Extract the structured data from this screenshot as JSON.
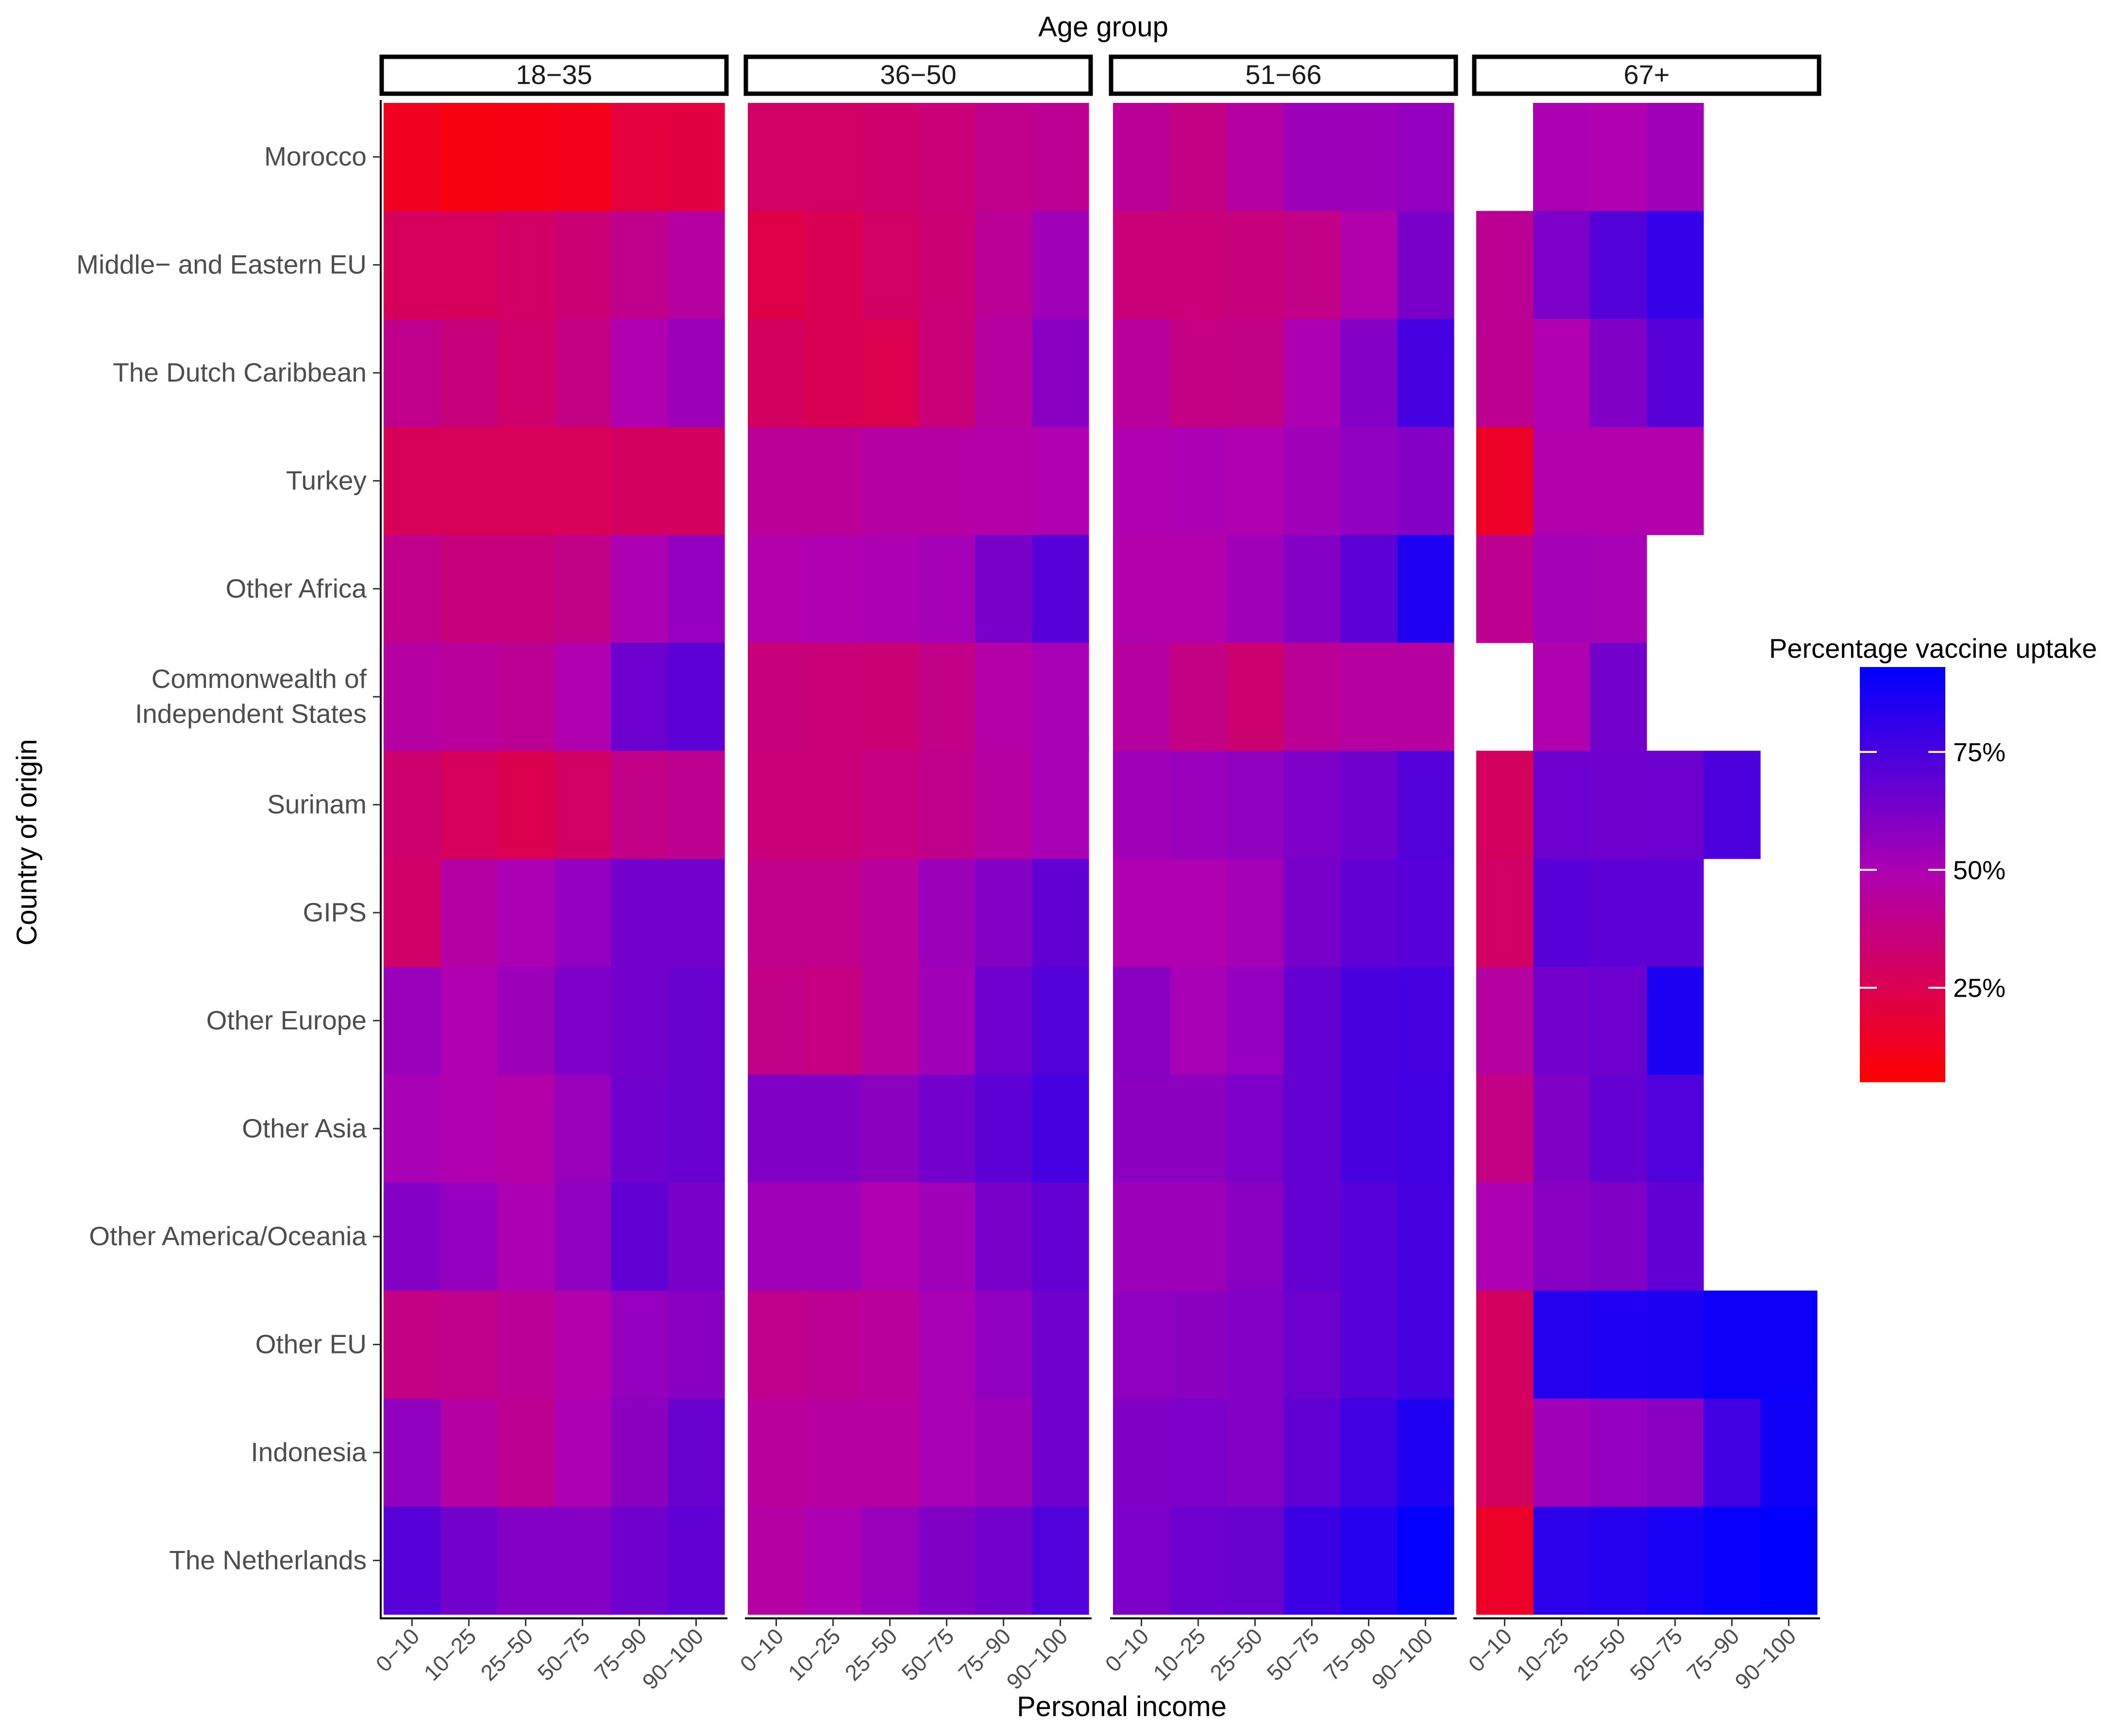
{
  "chart_data": {
    "type": "heatmap",
    "title": "",
    "facet_title": "Age group",
    "xlabel": "Personal income",
    "ylabel": "Country of origin",
    "facets": [
      "18−35",
      "36−50",
      "51−66",
      "67+"
    ],
    "income_categories": [
      "0−10",
      "10−25",
      "25−50",
      "50−75",
      "75−90",
      "90−100"
    ],
    "countries": [
      "Morocco",
      "Middle− and Eastern EU",
      "The Dutch Caribbean",
      "Turkey",
      "Other Africa",
      "Commonwealth of\nIndependent States",
      "Surinam",
      "GIPS",
      "Other Europe",
      "Other Asia",
      "Other America/Oceania",
      "Other EU",
      "Indonesia",
      "The Netherlands"
    ],
    "legend": {
      "title": "Percentage vaccine uptake",
      "breaks": [
        25,
        50,
        75
      ],
      "labels": [
        "25%",
        "50%",
        "75%"
      ],
      "min": 5,
      "max": 93,
      "low_color": "#FF0000",
      "high_color": "#0000FF"
    },
    "values_percent": {
      "18−35": [
        [
          13,
          9,
          10,
          11,
          20,
          21
        ],
        [
          28,
          28,
          30,
          34,
          40,
          45
        ],
        [
          40,
          36,
          32,
          38,
          49,
          54
        ],
        [
          27,
          27,
          27,
          27,
          29,
          29
        ],
        [
          40,
          36,
          36,
          39,
          50,
          56
        ],
        [
          46,
          44,
          42,
          49,
          66,
          70
        ],
        [
          33,
          28,
          25,
          30,
          39,
          41
        ],
        [
          31,
          46,
          50,
          56,
          64,
          64
        ],
        [
          55,
          49,
          54,
          62,
          64,
          67
        ],
        [
          51,
          49,
          47,
          55,
          65,
          67
        ],
        [
          60,
          56,
          50,
          57,
          69,
          63
        ],
        [
          38,
          40,
          43,
          48,
          56,
          59
        ],
        [
          57,
          46,
          41,
          50,
          58,
          67
        ],
        [
          71,
          64,
          60,
          60,
          65,
          69
        ]
      ],
      "36−50": [
        [
          30,
          30,
          32,
          35,
          40,
          42
        ],
        [
          23,
          26,
          30,
          34,
          43,
          53
        ],
        [
          29,
          26,
          25,
          35,
          45,
          59
        ],
        [
          43,
          43,
          46,
          46,
          47,
          49
        ],
        [
          48,
          49,
          50,
          52,
          63,
          71
        ],
        [
          36,
          35,
          34,
          39,
          47,
          51
        ],
        [
          35,
          35,
          37,
          40,
          45,
          51
        ],
        [
          40,
          40,
          44,
          54,
          60,
          69
        ],
        [
          39,
          37,
          44,
          53,
          66,
          72
        ],
        [
          61,
          61,
          58,
          64,
          70,
          76
        ],
        [
          53,
          53,
          49,
          53,
          63,
          68
        ],
        [
          40,
          42,
          44,
          51,
          57,
          65
        ],
        [
          44,
          45,
          45,
          51,
          54,
          65
        ],
        [
          46,
          50,
          55,
          61,
          64,
          73
        ]
      ],
      "51−66": [
        [
          43,
          38,
          46,
          54,
          54,
          56
        ],
        [
          35,
          35,
          36,
          39,
          48,
          63
        ],
        [
          44,
          38,
          39,
          50,
          60,
          76
        ],
        [
          49,
          50,
          49,
          53,
          57,
          60
        ],
        [
          48,
          48,
          53,
          60,
          70,
          85
        ],
        [
          45,
          38,
          33,
          43,
          45,
          45
        ],
        [
          53,
          55,
          57,
          62,
          65,
          72
        ],
        [
          49,
          49,
          52,
          63,
          69,
          71
        ],
        [
          59,
          51,
          56,
          68,
          75,
          76
        ],
        [
          58,
          58,
          62,
          68,
          75,
          77
        ],
        [
          54,
          54,
          59,
          68,
          71,
          76
        ],
        [
          57,
          58,
          60,
          66,
          71,
          76
        ],
        [
          61,
          62,
          60,
          69,
          77,
          85
        ],
        [
          62,
          66,
          67,
          78,
          84,
          92
        ]
      ],
      "67+": [
        [
          null,
          50,
          49,
          53,
          null,
          null
        ],
        [
          42,
          62,
          72,
          80,
          null,
          null
        ],
        [
          41,
          49,
          61,
          71,
          null,
          null
        ],
        [
          15,
          48,
          48,
          48,
          null,
          null
        ],
        [
          41,
          52,
          51,
          null,
          null,
          null
        ],
        [
          null,
          49,
          64,
          null,
          null,
          null
        ],
        [
          29,
          66,
          65,
          66,
          74,
          null
        ],
        [
          30,
          71,
          70,
          70,
          null,
          null
        ],
        [
          45,
          64,
          66,
          86,
          null,
          null
        ],
        [
          38,
          61,
          68,
          73,
          null,
          null
        ],
        [
          50,
          59,
          61,
          69,
          null,
          null
        ],
        [
          29,
          84,
          85,
          86,
          90,
          90
        ],
        [
          29,
          53,
          56,
          59,
          77,
          89
        ],
        [
          15,
          82,
          84,
          87,
          91,
          95
        ]
      ]
    }
  }
}
